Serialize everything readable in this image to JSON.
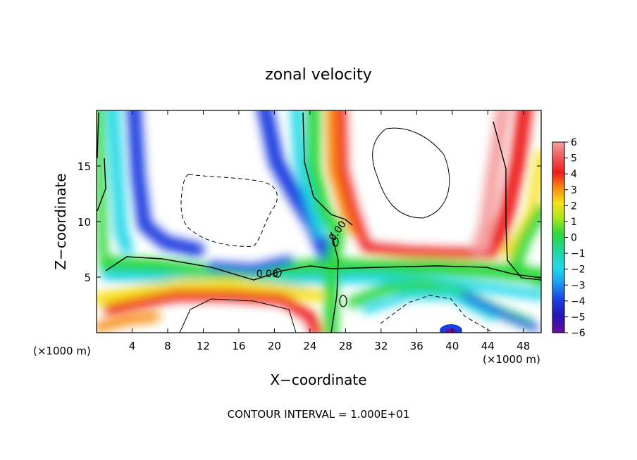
{
  "chart_data": {
    "type": "heatmap",
    "title": "zonal velocity",
    "xlabel": "X−coordinate",
    "ylabel": "Z−coordinate",
    "x_unit": "(×1000 m)",
    "xlim": [
      0,
      50
    ],
    "ylim": [
      0,
      20
    ],
    "x_ticks": [
      4,
      8,
      12,
      16,
      20,
      24,
      28,
      32,
      36,
      40,
      44,
      48
    ],
    "y_ticks": [
      5,
      10,
      15
    ],
    "colorbar": {
      "ticks": [
        6,
        5,
        4,
        3,
        2,
        1,
        0,
        -1,
        -2,
        -3,
        -4,
        -5,
        -6
      ],
      "tick_labels": [
        "6",
        "5",
        "4",
        "3",
        "2",
        "1",
        "0",
        "−1",
        "−2",
        "−3",
        "−4",
        "−5",
        "−6"
      ],
      "range": [
        -6,
        6
      ]
    },
    "contour_labels": [
      {
        "text": "0.00",
        "x": 19.2,
        "y": 5.0
      },
      {
        "text": "0.00",
        "x": 27.4,
        "y": 9.0
      }
    ],
    "footnote": "CONTOUR INTERVAL = 1.000E+01"
  }
}
